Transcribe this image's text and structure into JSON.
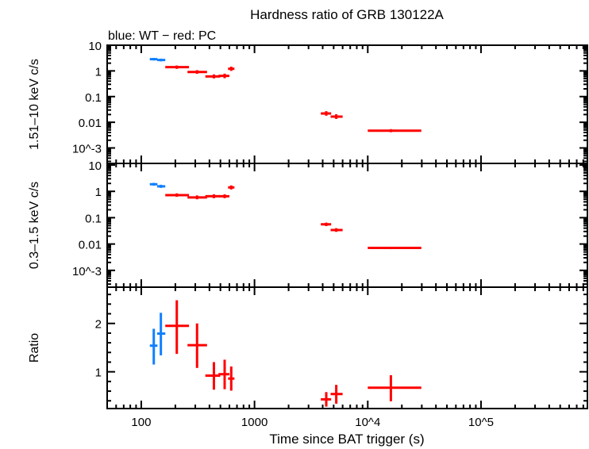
{
  "chart_data": {
    "type": "scatter",
    "title": "Hardness ratio of GRB 130122A",
    "subtitle": "blue: WT − red: PC",
    "xlabel": "Time since BAT trigger (s)",
    "xscale": "log",
    "xlim": [
      50,
      870000
    ],
    "x_ticks": [
      {
        "v": 100,
        "label": "100"
      },
      {
        "v": 1000,
        "label": "1000"
      },
      {
        "v": 10000,
        "label": "10^4"
      },
      {
        "v": 100000,
        "label": "10^5"
      }
    ],
    "colors": {
      "WT": "#1080ff",
      "PC": "#ff0000"
    },
    "panels": [
      {
        "ylabel": "1.51–10 keV c/s",
        "yscale": "log",
        "ylim": [
          0.00025,
          10
        ],
        "y_ticks": [
          {
            "v": 10,
            "label": "10"
          },
          {
            "v": 1,
            "label": "1"
          },
          {
            "v": 0.1,
            "label": "0.1"
          },
          {
            "v": 0.01,
            "label": "0.01"
          },
          {
            "v": 0.001,
            "label": "10^-3"
          }
        ],
        "points": [
          {
            "mode": "WT",
            "x": 129,
            "xlo": 119,
            "xhi": 139,
            "y": 2.86,
            "ylo": 2.55,
            "yhi": 3.2
          },
          {
            "mode": "WT",
            "x": 149,
            "xlo": 138,
            "xhi": 163,
            "y": 2.66,
            "ylo": 2.35,
            "yhi": 3.0
          },
          {
            "mode": "PC",
            "x": 206,
            "xlo": 163,
            "xhi": 264,
            "y": 1.4,
            "ylo": 1.2,
            "yhi": 1.62
          },
          {
            "mode": "PC",
            "x": 311,
            "xlo": 256,
            "xhi": 381,
            "y": 0.91,
            "ylo": 0.77,
            "yhi": 1.07
          },
          {
            "mode": "PC",
            "x": 438,
            "xlo": 368,
            "xhi": 498,
            "y": 0.61,
            "ylo": 0.51,
            "yhi": 0.73
          },
          {
            "mode": "PC",
            "x": 545,
            "xlo": 480,
            "xhi": 600,
            "y": 0.64,
            "ylo": 0.52,
            "yhi": 0.78
          },
          {
            "mode": "PC",
            "x": 623,
            "xlo": 584,
            "xhi": 665,
            "y": 1.21,
            "ylo": 1.0,
            "yhi": 1.46
          },
          {
            "mode": "PC",
            "x": 4300,
            "xlo": 3850,
            "xhi": 4750,
            "y": 0.022,
            "ylo": 0.018,
            "yhi": 0.027
          },
          {
            "mode": "PC",
            "x": 5270,
            "xlo": 4700,
            "xhi": 6000,
            "y": 0.0166,
            "ylo": 0.0135,
            "yhi": 0.0205
          },
          {
            "mode": "PC",
            "x": 16000,
            "xlo": 10000,
            "xhi": 29700,
            "y": 0.0047,
            "ylo": 0.0041,
            "yhi": 0.0054
          }
        ]
      },
      {
        "ylabel": "0.3–1.5 keV c/s",
        "yscale": "log",
        "ylim": [
          0.00023,
          11.5
        ],
        "y_ticks": [
          {
            "v": 10,
            "label": "10"
          },
          {
            "v": 1,
            "label": "1"
          },
          {
            "v": 0.1,
            "label": "0.1"
          },
          {
            "v": 0.01,
            "label": "0.01"
          },
          {
            "v": 0.001,
            "label": "10^-3"
          }
        ],
        "points": [
          {
            "mode": "WT",
            "x": 129,
            "xlo": 119,
            "xhi": 139,
            "y": 1.86,
            "ylo": 1.65,
            "yhi": 2.1
          },
          {
            "mode": "WT",
            "x": 149,
            "xlo": 138,
            "xhi": 163,
            "y": 1.55,
            "ylo": 1.35,
            "yhi": 1.78
          },
          {
            "mode": "PC",
            "x": 206,
            "xlo": 163,
            "xhi": 264,
            "y": 0.72,
            "ylo": 0.62,
            "yhi": 0.84
          },
          {
            "mode": "PC",
            "x": 311,
            "xlo": 256,
            "xhi": 381,
            "y": 0.59,
            "ylo": 0.5,
            "yhi": 0.7
          },
          {
            "mode": "PC",
            "x": 438,
            "xlo": 368,
            "xhi": 498,
            "y": 0.65,
            "ylo": 0.55,
            "yhi": 0.77
          },
          {
            "mode": "PC",
            "x": 545,
            "xlo": 480,
            "xhi": 600,
            "y": 0.65,
            "ylo": 0.55,
            "yhi": 0.77
          },
          {
            "mode": "PC",
            "x": 623,
            "xlo": 584,
            "xhi": 665,
            "y": 1.41,
            "ylo": 1.18,
            "yhi": 1.68
          },
          {
            "mode": "PC",
            "x": 4300,
            "xlo": 3850,
            "xhi": 4750,
            "y": 0.056,
            "ylo": 0.048,
            "yhi": 0.065
          },
          {
            "mode": "PC",
            "x": 5270,
            "xlo": 4700,
            "xhi": 6000,
            "y": 0.034,
            "ylo": 0.029,
            "yhi": 0.04
          },
          {
            "mode": "PC",
            "x": 16000,
            "xlo": 10000,
            "xhi": 29700,
            "y": 0.0071,
            "ylo": 0.0064,
            "yhi": 0.0079
          }
        ]
      },
      {
        "ylabel": "Ratio",
        "yscale": "linear",
        "ylim": [
          0.24,
          2.75
        ],
        "y_ticks": [
          {
            "v": 2,
            "label": "2"
          },
          {
            "v": 1,
            "label": "1"
          }
        ],
        "points": [
          {
            "mode": "WT",
            "x": 129,
            "xlo": 119,
            "xhi": 139,
            "y": 1.54,
            "ylo": 1.15,
            "yhi": 1.89
          },
          {
            "mode": "WT",
            "x": 149,
            "xlo": 138,
            "xhi": 163,
            "y": 1.79,
            "ylo": 1.34,
            "yhi": 2.22
          },
          {
            "mode": "PC",
            "x": 206,
            "xlo": 163,
            "xhi": 264,
            "y": 1.95,
            "ylo": 1.37,
            "yhi": 2.48
          },
          {
            "mode": "PC",
            "x": 311,
            "xlo": 256,
            "xhi": 381,
            "y": 1.55,
            "ylo": 1.08,
            "yhi": 2.0
          },
          {
            "mode": "PC",
            "x": 438,
            "xlo": 368,
            "xhi": 498,
            "y": 0.92,
            "ylo": 0.63,
            "yhi": 1.2
          },
          {
            "mode": "PC",
            "x": 545,
            "xlo": 480,
            "xhi": 600,
            "y": 0.95,
            "ylo": 0.64,
            "yhi": 1.25
          },
          {
            "mode": "PC",
            "x": 623,
            "xlo": 584,
            "xhi": 665,
            "y": 0.86,
            "ylo": 0.61,
            "yhi": 1.11
          },
          {
            "mode": "PC",
            "x": 4300,
            "xlo": 3850,
            "xhi": 4750,
            "y": 0.43,
            "ylo": 0.28,
            "yhi": 0.58
          },
          {
            "mode": "PC",
            "x": 5270,
            "xlo": 4700,
            "xhi": 6000,
            "y": 0.54,
            "ylo": 0.34,
            "yhi": 0.73
          },
          {
            "mode": "PC",
            "x": 16000,
            "xlo": 10000,
            "xhi": 29700,
            "y": 0.67,
            "ylo": 0.39,
            "yhi": 0.93
          }
        ]
      }
    ]
  }
}
